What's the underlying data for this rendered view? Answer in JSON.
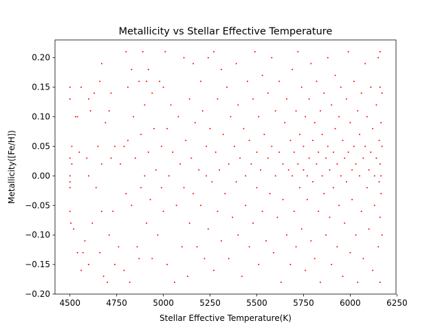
{
  "chart_data": {
    "type": "scatter",
    "title": "Metallicity vs Stellar Effective Temperature",
    "xlabel": "Stellar Effective Temperature(K)",
    "ylabel": "Metallicity([Fe/H])",
    "xlim": [
      4420,
      6245
    ],
    "ylim": [
      -0.2,
      0.23
    ],
    "xticks": [
      4500,
      4750,
      5000,
      5250,
      5500,
      5750,
      6000,
      6250
    ],
    "yticks": [
      -0.2,
      -0.15,
      -0.1,
      -0.05,
      0.0,
      0.05,
      0.1,
      0.15,
      0.2
    ],
    "ytick_labels": [
      "−0.20",
      "−0.15",
      "−0.10",
      "−0.05",
      "0.00",
      "0.05",
      "0.10",
      "0.15",
      "0.20"
    ],
    "marker_color": "#ff0000",
    "grid": false,
    "legend": "none",
    "series": [
      {
        "points": [
          [
            4500,
            0.15
          ],
          [
            4500,
            0.13
          ],
          [
            4500,
            0.03
          ],
          [
            4500,
            0.0
          ],
          [
            4500,
            -0.01
          ],
          [
            4500,
            -0.02
          ],
          [
            4500,
            -0.06
          ],
          [
            4505,
            -0.08
          ],
          [
            4510,
            0.05
          ],
          [
            4510,
            0.02
          ],
          [
            4520,
            -0.09
          ],
          [
            4530,
            0.1
          ],
          [
            4540,
            0.1
          ],
          [
            4540,
            -0.13
          ],
          [
            4550,
            0.04
          ],
          [
            4560,
            0.15
          ],
          [
            4560,
            -0.16
          ],
          [
            4570,
            -0.13
          ],
          [
            4580,
            -0.11
          ],
          [
            4590,
            0.03
          ],
          [
            4600,
            0.13
          ],
          [
            4600,
            0.0
          ],
          [
            4600,
            -0.15
          ],
          [
            4610,
            0.11
          ],
          [
            4620,
            -0.08
          ],
          [
            4630,
            0.14
          ],
          [
            4640,
            -0.02
          ],
          [
            4650,
            0.05
          ],
          [
            4660,
            0.16
          ],
          [
            4660,
            -0.13
          ],
          [
            4670,
            0.19
          ],
          [
            4670,
            0.02
          ],
          [
            4670,
            -0.06
          ],
          [
            4680,
            -0.17
          ],
          [
            4690,
            0.09
          ],
          [
            4700,
            -0.18
          ],
          [
            4710,
            0.11
          ],
          [
            4710,
            -0.1
          ],
          [
            4720,
            0.14
          ],
          [
            4720,
            0.03
          ],
          [
            4730,
            -0.06
          ],
          [
            4740,
            0.05
          ],
          [
            4740,
            -0.15
          ],
          [
            4760,
            -0.12
          ],
          [
            4770,
            0.02
          ],
          [
            4790,
            0.05
          ],
          [
            4790,
            -0.16
          ],
          [
            4800,
            0.21
          ],
          [
            4800,
            -0.03
          ],
          [
            4810,
            0.15
          ],
          [
            4810,
            0.06
          ],
          [
            4820,
            -0.18
          ],
          [
            4830,
            0.18
          ],
          [
            4830,
            -0.05
          ],
          [
            4840,
            0.1
          ],
          [
            4850,
            0.03
          ],
          [
            4860,
            -0.12
          ],
          [
            4870,
            0.16
          ],
          [
            4870,
            -0.14
          ],
          [
            4880,
            0.07
          ],
          [
            4880,
            -0.02
          ],
          [
            4890,
            0.21
          ],
          [
            4900,
            0.12
          ],
          [
            4900,
            0.0
          ],
          [
            4910,
            0.16
          ],
          [
            4910,
            -0.08
          ],
          [
            4920,
            0.18
          ],
          [
            4920,
            0.04
          ],
          [
            4930,
            -0.04
          ],
          [
            4940,
            0.14
          ],
          [
            4940,
            -0.14
          ],
          [
            4950,
            0.08
          ],
          [
            4960,
            0.01
          ],
          [
            4970,
            -0.1
          ],
          [
            4980,
            0.16
          ],
          [
            4990,
            0.05
          ],
          [
            4990,
            -0.02
          ],
          [
            5000,
            0.15
          ],
          [
            5000,
            -0.06
          ],
          [
            5010,
            0.21
          ],
          [
            5020,
            0.08
          ],
          [
            5020,
            -0.15
          ],
          [
            5030,
            0.0
          ],
          [
            5040,
            0.12
          ],
          [
            5050,
            0.04
          ],
          [
            5060,
            -0.18
          ],
          [
            5070,
            -0.05
          ],
          [
            5080,
            0.1
          ],
          [
            5090,
            0.02
          ],
          [
            5100,
            -0.12
          ],
          [
            5110,
            0.2
          ],
          [
            5110,
            -0.02
          ],
          [
            5120,
            0.06
          ],
          [
            5130,
            -0.17
          ],
          [
            5140,
            0.13
          ],
          [
            5140,
            -0.08
          ],
          [
            5150,
            0.03
          ],
          [
            5160,
            0.19
          ],
          [
            5160,
            -0.03
          ],
          [
            5170,
            0.09
          ],
          [
            5180,
            -0.12
          ],
          [
            5190,
            0.01
          ],
          [
            5200,
            0.16
          ],
          [
            5200,
            -0.05
          ],
          [
            5210,
            0.11
          ],
          [
            5220,
            -0.14
          ],
          [
            5230,
            0.05
          ],
          [
            5230,
            0.0
          ],
          [
            5240,
            0.2
          ],
          [
            5240,
            -0.09
          ],
          [
            5250,
            0.08
          ],
          [
            5260,
            -0.01
          ],
          [
            5270,
            0.21
          ],
          [
            5270,
            -0.16
          ],
          [
            5280,
            0.04
          ],
          [
            5290,
            0.13
          ],
          [
            5290,
            -0.06
          ],
          [
            5300,
            0.01
          ],
          [
            5310,
            0.18
          ],
          [
            5310,
            -0.11
          ],
          [
            5320,
            0.07
          ],
          [
            5330,
            -0.03
          ],
          [
            5340,
            0.15
          ],
          [
            5350,
            0.02
          ],
          [
            5350,
            -0.14
          ],
          [
            5360,
            0.1
          ],
          [
            5370,
            -0.07
          ],
          [
            5380,
            0.05
          ],
          [
            5390,
            0.19
          ],
          [
            5390,
            -0.01
          ],
          [
            5400,
            0.12
          ],
          [
            5400,
            -0.1
          ],
          [
            5410,
            0.03
          ],
          [
            5420,
            -0.17
          ],
          [
            5430,
            0.08
          ],
          [
            5440,
            0.0
          ],
          [
            5440,
            -0.05
          ],
          [
            5450,
            0.16
          ],
          [
            5460,
            0.06
          ],
          [
            5460,
            -0.12
          ],
          [
            5470,
            0.02
          ],
          [
            5480,
            0.13
          ],
          [
            5480,
            -0.08
          ],
          [
            5490,
            0.21
          ],
          [
            5500,
            0.04
          ],
          [
            5500,
            -0.02
          ],
          [
            5510,
            0.1
          ],
          [
            5510,
            -0.15
          ],
          [
            5520,
            0.01
          ],
          [
            5530,
            0.17
          ],
          [
            5530,
            -0.06
          ],
          [
            5540,
            0.07
          ],
          [
            5550,
            -0.11
          ],
          [
            5560,
            0.03
          ],
          [
            5560,
            0.14
          ],
          [
            5570,
            -0.03
          ],
          [
            5580,
            0.2
          ],
          [
            5580,
            0.05
          ],
          [
            5590,
            -0.13
          ],
          [
            5600,
            0.0
          ],
          [
            5600,
            0.11
          ],
          [
            5610,
            -0.07
          ],
          [
            5620,
            0.04
          ],
          [
            5620,
            0.16
          ],
          [
            5630,
            -0.18
          ],
          [
            5640,
            0.02
          ],
          [
            5640,
            -0.04
          ],
          [
            5650,
            0.09
          ],
          [
            5660,
            0.13
          ],
          [
            5660,
            -0.1
          ],
          [
            5670,
            0.01
          ],
          [
            5680,
            0.06
          ],
          [
            5680,
            -0.15
          ],
          [
            5690,
            0.18
          ],
          [
            5690,
            0.0
          ],
          [
            5700,
            -0.06
          ],
          [
            5700,
            0.04
          ],
          [
            5710,
            0.11
          ],
          [
            5710,
            -0.12
          ],
          [
            5720,
            0.02
          ],
          [
            5720,
            0.21
          ],
          [
            5730,
            -0.02
          ],
          [
            5730,
            0.07
          ],
          [
            5740,
            0.15
          ],
          [
            5740,
            -0.09
          ],
          [
            5750,
            0.01
          ],
          [
            5750,
            0.05
          ],
          [
            5760,
            -0.16
          ],
          [
            5760,
            0.1
          ],
          [
            5770,
            0.0
          ],
          [
            5770,
            -0.04
          ],
          [
            5780,
            0.13
          ],
          [
            5780,
            0.03
          ],
          [
            5790,
            -0.11
          ],
          [
            5790,
            0.19
          ],
          [
            5800,
            0.06
          ],
          [
            5800,
            -0.01
          ],
          [
            5810,
            0.09
          ],
          [
            5810,
            -0.14
          ],
          [
            5820,
            0.02
          ],
          [
            5820,
            0.16
          ],
          [
            5830,
            -0.06
          ],
          [
            5830,
            0.04
          ],
          [
            5840,
            0.11
          ],
          [
            5840,
            -0.18
          ],
          [
            5850,
            0.0
          ],
          [
            5850,
            0.07
          ],
          [
            5860,
            -0.03
          ],
          [
            5860,
            0.14
          ],
          [
            5870,
            0.03
          ],
          [
            5870,
            -0.1
          ],
          [
            5880,
            0.2
          ],
          [
            5880,
            0.05
          ],
          [
            5890,
            -0.07
          ],
          [
            5890,
            0.01
          ],
          [
            5900,
            0.12
          ],
          [
            5900,
            -0.15
          ],
          [
            5910,
            0.04
          ],
          [
            5910,
            -0.02
          ],
          [
            5920,
            0.17
          ],
          [
            5920,
            0.08
          ],
          [
            5930,
            -0.12
          ],
          [
            5930,
            0.02
          ],
          [
            5940,
            0.1
          ],
          [
            5940,
            -0.05
          ],
          [
            5950,
            0.0
          ],
          [
            5950,
            0.15
          ],
          [
            5960,
            -0.17
          ],
          [
            5960,
            0.06
          ],
          [
            5970,
            0.03
          ],
          [
            5970,
            -0.08
          ],
          [
            5980,
            0.13
          ],
          [
            5980,
            -0.01
          ],
          [
            5990,
            0.21
          ],
          [
            5990,
            0.04
          ],
          [
            6000,
            -0.13
          ],
          [
            6000,
            0.09
          ],
          [
            6010,
            0.01
          ],
          [
            6010,
            -0.04
          ],
          [
            6020,
            0.16
          ],
          [
            6020,
            0.05
          ],
          [
            6030,
            -0.1
          ],
          [
            6030,
            0.02
          ],
          [
            6040,
            0.11
          ],
          [
            6040,
            -0.18
          ],
          [
            6050,
            0.0
          ],
          [
            6050,
            0.07
          ],
          [
            6060,
            -0.06
          ],
          [
            6060,
            0.14
          ],
          [
            6070,
            0.03
          ],
          [
            6070,
            -0.14
          ],
          [
            6080,
            0.19
          ],
          [
            6080,
            0.05
          ],
          [
            6090,
            -0.02
          ],
          [
            6090,
            0.1
          ],
          [
            6100,
            0.01
          ],
          [
            6100,
            -0.09
          ],
          [
            6110,
            0.15
          ],
          [
            6110,
            0.04
          ],
          [
            6120,
            -0.16
          ],
          [
            6120,
            0.08
          ],
          [
            6130,
            0.0
          ],
          [
            6130,
            -0.05
          ],
          [
            6140,
            0.12
          ],
          [
            6140,
            0.03
          ],
          [
            6150,
            0.2
          ],
          [
            6150,
            -0.12
          ],
          [
            6155,
            0.06
          ],
          [
            6155,
            -0.01
          ],
          [
            6160,
            0.21
          ],
          [
            6160,
            0.15
          ],
          [
            6160,
            0.02
          ],
          [
            6160,
            -0.07
          ],
          [
            6160,
            -0.18
          ],
          [
            6165,
            0.09
          ],
          [
            6165,
            0.0
          ],
          [
            6165,
            -0.03
          ],
          [
            6170,
            0.14
          ],
          [
            6170,
            0.05
          ],
          [
            6170,
            -0.1
          ]
        ]
      }
    ]
  }
}
